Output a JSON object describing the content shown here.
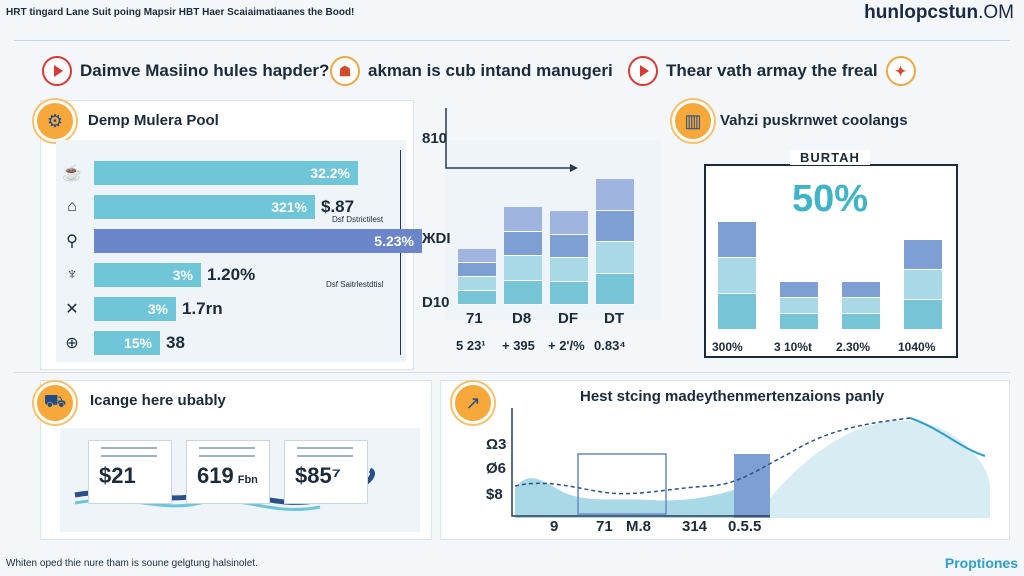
{
  "header": {
    "title": "HRT tingard Lane Suit poing Mapsir HBT Haer Scaiaimatiaanes the Bood!",
    "site_main": "hunlopcstun",
    "site_domain": ".OM"
  },
  "headlines": [
    {
      "text": "Daimve Masiino hules hapder?",
      "icon": "play-icon"
    },
    {
      "text": "akman is cub intand manugeri",
      "icon": "badge-icon"
    },
    {
      "text": "Thear vath armay the freal",
      "icon": "play-icon"
    }
  ],
  "pool": {
    "title": "Demp Mulera Pool",
    "icons": [
      "cup-icon",
      "house-icon",
      "tool-icon",
      "trophy-icon",
      "tools-icon",
      "compass-icon"
    ],
    "bars": [
      {
        "label": "32.2%",
        "value": 0.322,
        "external": ""
      },
      {
        "label": "321%",
        "value": 0.27,
        "external": "$.87"
      },
      {
        "label": "5.23%",
        "value": 0.4,
        "external": ""
      },
      {
        "label": "3%",
        "value": 0.13,
        "external": "1.20%"
      },
      {
        "label": "3%",
        "value": 0.1,
        "external": "1.7rn"
      },
      {
        "label": "15%",
        "value": 0.08,
        "external": "38"
      }
    ],
    "notes": [
      "Dsf Dstrictilest",
      "Dsf Saitrlestdtisl"
    ]
  },
  "chart_data": {
    "type": "bar",
    "stacked": true,
    "categories": [
      "71",
      "D8",
      "DF",
      "DT"
    ],
    "values": [
      56,
      98,
      94,
      126
    ],
    "value_labels": [
      "5 23¹",
      "+ 395",
      "+ 2'/%",
      "0.83⁴"
    ],
    "yticks": [
      "810",
      "ЖDI",
      "D10"
    ]
  },
  "savings": {
    "title": "Vahzi puskrnwet coolangs",
    "subtitle": "BURTAH",
    "big": "50%",
    "bars": [
      {
        "value": 0.9,
        "label": "300%"
      },
      {
        "value": 0.4,
        "label": "3 10%t"
      },
      {
        "value": 0.4,
        "label": "2.30%"
      },
      {
        "value": 0.75,
        "label": "1040%"
      }
    ]
  },
  "cards": {
    "title": "Icange here ubably",
    "items": [
      {
        "value": "$21"
      },
      {
        "value": "619",
        "suffix": "Fbn"
      },
      {
        "value": "$85⁷"
      }
    ]
  },
  "trend": {
    "title": "Hest stcing madeythenmertenzaions panly",
    "yticks": [
      "Ω3",
      "Ø6",
      "$8"
    ],
    "xticks": [
      "9",
      "71",
      "M.8",
      "314",
      "0.5.5"
    ]
  },
  "footer": {
    "left": "Whiten oped thie nure tham is soune gelgtung halsinolet.",
    "right": "Proptiones"
  },
  "colors": {
    "teal": "#6fc6d8",
    "blue": "#6b86c8",
    "orange": "#f7a83a",
    "red": "#d83a34"
  }
}
